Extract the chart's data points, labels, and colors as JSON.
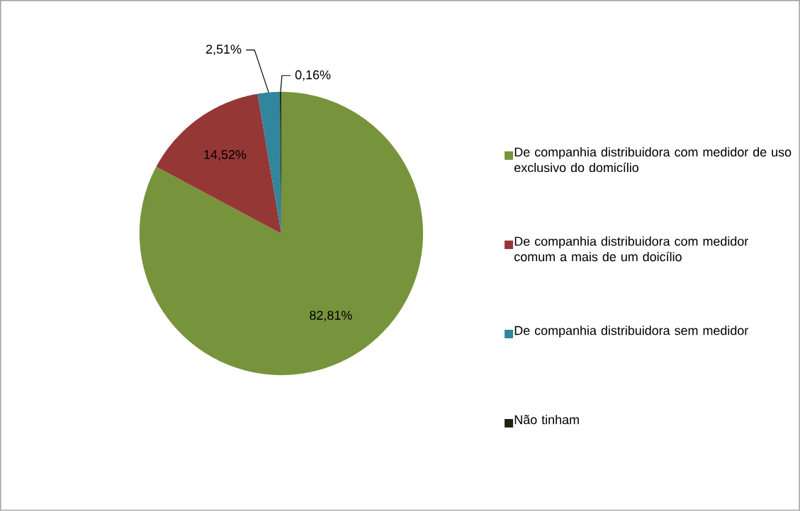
{
  "chart_data": {
    "type": "pie",
    "categories": [
      "De companhia distribuidora com medidor de uso exclusivo do domicílio",
      "De companhia distribuidora com medidor comum a mais de um doicílio",
      "De companhia distribuidora sem medidor",
      "Não tinham"
    ],
    "values": [
      82.81,
      14.52,
      2.51,
      0.16
    ],
    "value_labels": [
      "82,81%",
      "14,52%",
      "2,51%",
      "0,16%"
    ],
    "colors": [
      "#77933c",
      "#953735",
      "#31859c",
      "#1d2410"
    ],
    "legend": "right"
  }
}
